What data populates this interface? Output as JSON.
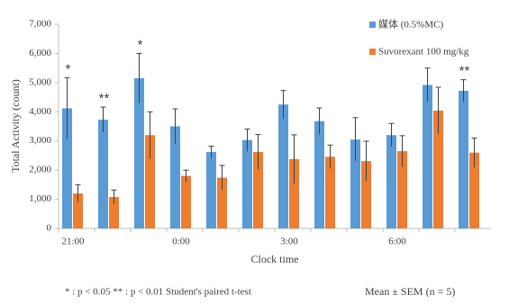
{
  "chart_data": {
    "type": "bar",
    "y_label": "Total Activity (count)",
    "x_label": "Clock time",
    "categories": [
      "21:00",
      null,
      null,
      "0:00",
      null,
      null,
      "3:00",
      null,
      null,
      "6:00",
      null,
      null
    ],
    "series": [
      {
        "name": "媒体 (0.5%MC)",
        "color": "#5b9bd5",
        "values": [
          4120,
          3730,
          5150,
          3500,
          2620,
          3030,
          4250,
          3680,
          3050,
          3200,
          4920,
          4720
        ],
        "errors": [
          1050,
          430,
          850,
          600,
          200,
          380,
          480,
          450,
          750,
          400,
          580,
          380
        ]
      },
      {
        "name": "Suvorexant 100 mg/kg",
        "color": "#ed7d31",
        "values": [
          1200,
          1080,
          3200,
          1800,
          1740,
          2620,
          2380,
          2460,
          2310,
          2650,
          4040,
          2600
        ],
        "errors": [
          300,
          240,
          800,
          200,
          420,
          600,
          830,
          400,
          680,
          530,
          800,
          500
        ]
      }
    ],
    "significance": [
      "*",
      "**",
      "*",
      null,
      null,
      null,
      null,
      null,
      null,
      null,
      null,
      "**"
    ],
    "ylim": [
      0,
      7000
    ],
    "yticks": [
      0,
      {
        "value": 1000,
        "label": "1,000"
      },
      {
        "value": 2000,
        "label": "2,000"
      },
      {
        "value": 3000,
        "label": "3,000"
      },
      {
        "value": 4000,
        "label": "4,000"
      },
      {
        "value": 5000,
        "label": "5,000"
      },
      {
        "value": 6000,
        "label": "6,000"
      },
      {
        "value": 7000,
        "label": "7,000"
      }
    ],
    "footnote": "* : p < 0.05  ** : p < 0.01  Student's paired t-test",
    "note": "Mean ± SEM (n = 5)"
  }
}
